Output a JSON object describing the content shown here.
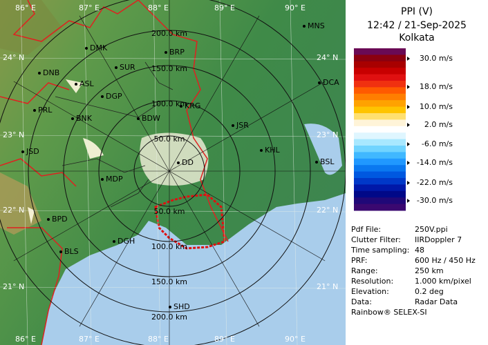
{
  "map": {
    "longitude_labels": [
      "86° E",
      "87° E",
      "88° E",
      "89° E",
      "90° E"
    ],
    "latitude_labels": [
      "24° N",
      "23° N",
      "22° N",
      "21° N"
    ],
    "range_labels_north": [
      "50.0 km",
      "100.0 km",
      "150.0 km",
      "200.0 km"
    ],
    "range_labels_south": [
      "50.0 km",
      "100.0 km",
      "150.0 km",
      "200.0 km"
    ],
    "cities": [
      "MNS",
      "DMK",
      "BRP",
      "DNB",
      "SUR",
      "ASL",
      "DGP",
      "DCA",
      "KRG",
      "PRL",
      "BNK",
      "BDW",
      "JSR",
      "JSD",
      "KHL",
      "DD",
      "BSL",
      "MDP",
      "BPD",
      "DGH",
      "BLS",
      "SHD"
    ]
  },
  "panel": {
    "title": "PPI (V)",
    "time": "12:42 / 21-Sep-2025",
    "station": "Kolkata",
    "scale_labels": [
      "30.0 m/s",
      "18.0 m/s",
      "10.0 m/s",
      "2.0 m/s",
      "-6.0 m/s",
      "-14.0 m/s",
      "-22.0 m/s",
      "-30.0 m/s"
    ],
    "scale_colors": [
      "#6a0a55",
      "#8b0010",
      "#a80000",
      "#c80000",
      "#e01010",
      "#f03010",
      "#ff5a00",
      "#ff7e00",
      "#ffa200",
      "#ffc400",
      "#ffe070",
      "#fff4d8",
      "#ffffff",
      "#dff6ff",
      "#a8e8ff",
      "#70d4ff",
      "#40b8ff",
      "#2098ff",
      "#0a78f0",
      "#0058e0",
      "#0038c8",
      "#0018a8",
      "#000888",
      "#200878",
      "#3a0870"
    ],
    "info": [
      [
        "Pdf File:",
        "250V.ppi"
      ],
      [
        "Clutter Filter:",
        "IIRDoppler 7"
      ],
      [
        "Time sampling:",
        "48"
      ],
      [
        "PRF:",
        "600 Hz / 450 Hz"
      ],
      [
        "Range:",
        "250 km"
      ],
      [
        "Resolution:",
        "1.000 km/pixel"
      ],
      [
        "Elevation:",
        "0.2 deg"
      ],
      [
        "Data:",
        "Radar Data"
      ]
    ],
    "footer": "Rainbow® SELEX-SI"
  }
}
